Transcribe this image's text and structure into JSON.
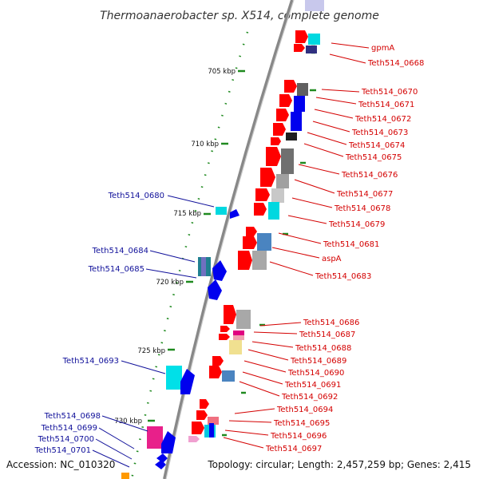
{
  "title": "Thermoanaerobacter sp. X514, complete genome",
  "accession": "Accession: NC_010320",
  "topology": "Topology: circular; Length: 2,457,259 bp; Genes: 2,415",
  "kbp_ticks": [
    {
      "label": "705 kbp"
    },
    {
      "label": "710 kbp"
    },
    {
      "label": "715 kbp"
    },
    {
      "label": "720 kbp"
    },
    {
      "label": "725 kbp"
    },
    {
      "label": "730 kbp"
    }
  ],
  "forward_labels": [
    "gpmA",
    "Teth514_0668",
    "Teth514_0670",
    "Teth514_0671",
    "Teth514_0672",
    "Teth514_0673",
    "Teth514_0674",
    "Teth514_0675",
    "Teth514_0676",
    "Teth514_0677",
    "Teth514_0678",
    "Teth514_0679",
    "Teth514_0681",
    "aspA",
    "Teth514_0683",
    "Teth514_0686",
    "Teth514_0687",
    "Teth514_0688",
    "Teth514_0689",
    "Teth514_0690",
    "Teth514_0691",
    "Teth514_0692",
    "Teth514_0694",
    "Teth514_0695",
    "Teth514_0696",
    "Teth514_0697"
  ],
  "reverse_labels": [
    "Teth514_0680",
    "Teth514_0684",
    "Teth514_0685",
    "Teth514_0693",
    "Teth514_0698",
    "Teth514_0699",
    "Teth514_0700",
    "Teth514_0701"
  ],
  "colors": {
    "forward_label": "#d40000",
    "reverse_label": "#10109a",
    "forward_gene": "#ff0000",
    "reverse_gene": "#0000ee",
    "backbone": "#888888",
    "tick": "#1f8a1f"
  }
}
